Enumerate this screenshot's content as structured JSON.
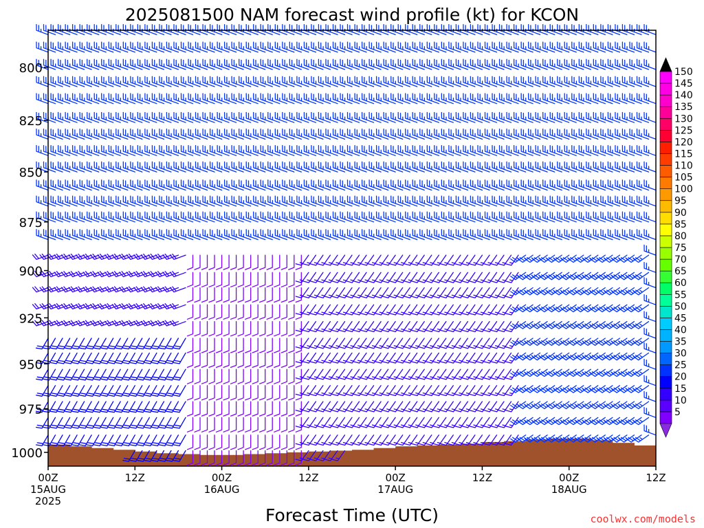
{
  "chart_data": {
    "type": "wind-barb-profile",
    "title": "2025081500 NAM forecast wind profile (kt) for KCON",
    "xlabel": "Forecast Time (UTC)",
    "ylabel": "",
    "credit": "coolwx.com/models",
    "x_ticks": [
      {
        "hour": 0,
        "line1": "00Z",
        "line2": "15AUG",
        "line3": "2025"
      },
      {
        "hour": 12,
        "line1": "12Z",
        "line2": "",
        "line3": ""
      },
      {
        "hour": 24,
        "line1": "00Z",
        "line2": "16AUG",
        "line3": ""
      },
      {
        "hour": 36,
        "line1": "12Z",
        "line2": "",
        "line3": ""
      },
      {
        "hour": 48,
        "line1": "00Z",
        "line2": "17AUG",
        "line3": ""
      },
      {
        "hour": 60,
        "line1": "12Z",
        "line2": "",
        "line3": ""
      },
      {
        "hour": 72,
        "line1": "00Z",
        "line2": "18AUG",
        "line3": ""
      },
      {
        "hour": 84,
        "line1": "12Z",
        "line2": "",
        "line3": ""
      }
    ],
    "xlim_hours": [
      0,
      84
    ],
    "y_ticks": [
      "800",
      "825",
      "850",
      "875",
      "900",
      "925",
      "950",
      "975",
      "1000"
    ],
    "ylim_hpa": [
      783,
      1008
    ],
    "y_scale": "log-pressure",
    "barb_time_step_hours": 1,
    "barb_levels_hpa": [
      785,
      793,
      801,
      809,
      817,
      826,
      834,
      842,
      850,
      859,
      867,
      875,
      884,
      892,
      901,
      909,
      918,
      927,
      936,
      944,
      953,
      962,
      971,
      980,
      990,
      999
    ],
    "surface_pressure_hpa": {
      "hours": [
        0,
        3,
        6,
        9,
        12,
        15,
        18,
        21,
        24,
        27,
        30,
        33,
        36,
        39,
        42,
        45,
        48,
        51,
        54,
        57,
        60,
        63,
        66,
        69,
        72,
        75,
        78,
        81,
        84
      ],
      "values": [
        995.5,
        996.5,
        997.5,
        998.5,
        999.5,
        1000.5,
        1001.0,
        1001.5,
        1001.5,
        1001.0,
        1000.5,
        1000.0,
        999.5,
        999.0,
        998.5,
        997.5,
        996.5,
        996.0,
        995.5,
        995.0,
        994.0,
        993.5,
        992.5,
        992.0,
        992.0,
        993.0,
        994.5,
        996.0,
        997.5
      ]
    },
    "surface_fill_color": "#a0522d",
    "wind_regimes": [
      {
        "h0": 0,
        "h1": 84,
        "p0": 783,
        "p1": 890,
        "dir": 290,
        "spd": 25
      },
      {
        "h0": 0,
        "h1": 20,
        "p0": 890,
        "p1": 930,
        "dir": 250,
        "spd": 18
      },
      {
        "h0": 0,
        "h1": 20,
        "p0": 930,
        "p1": 1008,
        "dir": 210,
        "spd": 22
      },
      {
        "h0": 20,
        "h1": 36,
        "p0": 890,
        "p1": 1008,
        "dir": 180,
        "spd": 8
      },
      {
        "h0": 36,
        "h1": 66,
        "p0": 890,
        "p1": 1008,
        "dir": 215,
        "spd": 15
      },
      {
        "h0": 66,
        "h1": 84,
        "p0": 890,
        "p1": 1008,
        "dir": 235,
        "spd": 25
      }
    ],
    "colorbar": {
      "labels": [
        "5",
        "10",
        "15",
        "20",
        "25",
        "30",
        "35",
        "40",
        "45",
        "50",
        "55",
        "60",
        "65",
        "70",
        "75",
        "80",
        "85",
        "90",
        "95",
        "100",
        "105",
        "110",
        "115",
        "120",
        "125",
        "130",
        "135",
        "140",
        "145",
        "150"
      ],
      "colors": [
        "#7f00ff",
        "#5a00ff",
        "#3300ff",
        "#0000ff",
        "#0033ff",
        "#0066ff",
        "#0099ff",
        "#00b3ff",
        "#00ccff",
        "#00e6cc",
        "#00ff99",
        "#00ff66",
        "#33ff33",
        "#66ff00",
        "#99ff00",
        "#ccff00",
        "#ffff00",
        "#ffdd00",
        "#ffbb00",
        "#ff9900",
        "#ff7a00",
        "#ff5c00",
        "#ff3d00",
        "#ff1f00",
        "#ff0033",
        "#ff0066",
        "#ff0099",
        "#ff00cc",
        "#ff00e6",
        "#ff00ff"
      ],
      "top_arrow_color": "#000000",
      "bottom_arrow_color": "#8a2be2"
    }
  }
}
